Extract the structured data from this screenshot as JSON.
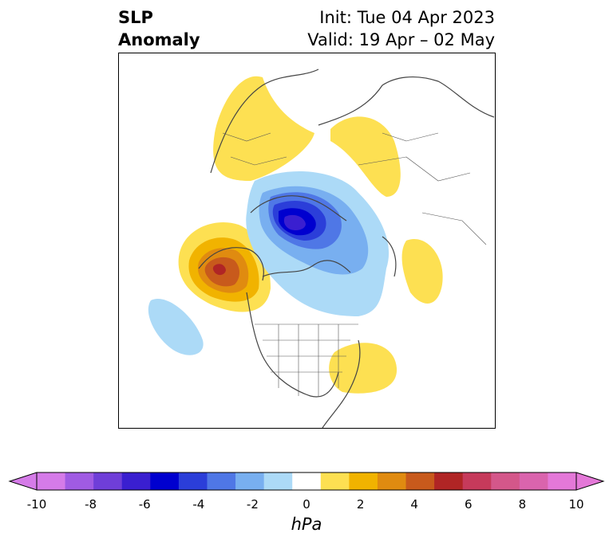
{
  "title": {
    "variable_line1": "SLP",
    "variable_line2": "Anomaly",
    "init": "Init: Tue 04 Apr 2023",
    "valid": "Valid: 19 Apr – 02 May"
  },
  "colorbar": {
    "units": "hPa",
    "ticks": [
      "-10",
      "-8",
      "-6",
      "-4",
      "-2",
      "0",
      "2",
      "4",
      "6",
      "8",
      "10"
    ],
    "extend": "both",
    "colors": [
      "#d57be8",
      "#a05be3",
      "#6f3ed8",
      "#3a1fd0",
      "#0000cf",
      "#2b3ed9",
      "#4f77e6",
      "#78aff0",
      "#acdaf7",
      "#ffffff",
      "#fde052",
      "#f1b300",
      "#e08b10",
      "#c85a1c",
      "#b02525",
      "#c63a5b",
      "#d4578a",
      "#da64ad",
      "#e478d8"
    ],
    "extend_low_color": "#d57be8",
    "extend_high_color": "#e478d8"
  },
  "map": {
    "projection": "north polar stereographic",
    "region": "Northern Hemisphere (North America centered)",
    "anomaly_centers": [
      {
        "label": "negative",
        "region": "Arctic Ocean / Canadian Archipelago",
        "min_hpa": -7
      },
      {
        "label": "positive",
        "region": "Gulf of Alaska",
        "max_hpa": 6
      },
      {
        "label": "positive",
        "region": "Northern Europe / Scandinavia",
        "max_hpa": 2
      },
      {
        "label": "positive",
        "region": "Western Russia",
        "max_hpa": 2
      },
      {
        "label": "positive",
        "region": "Greenland / Iceland area",
        "max_hpa": 2
      },
      {
        "label": "positive",
        "region": "US East Coast / Western Atlantic",
        "max_hpa": 2
      },
      {
        "label": "negative",
        "region": "North Pacific",
        "min_hpa": -2
      }
    ]
  }
}
